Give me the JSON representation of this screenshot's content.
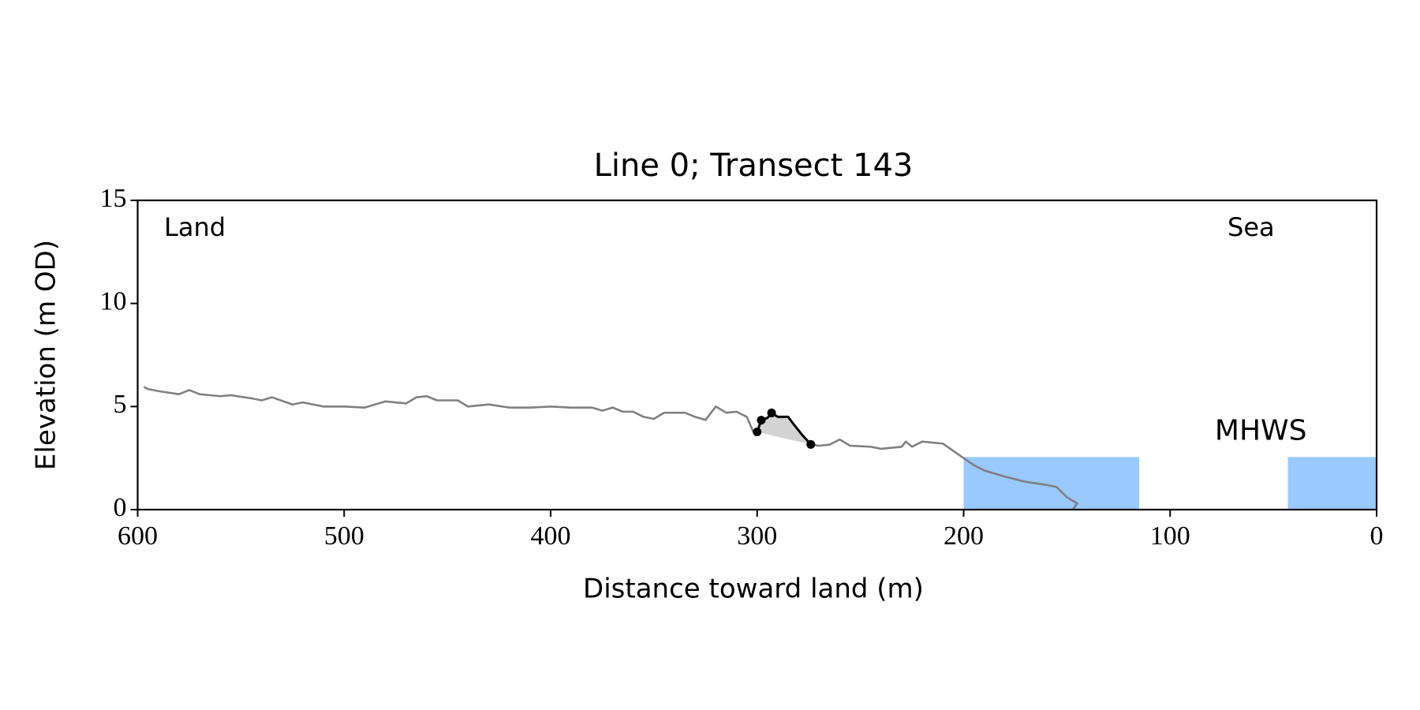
{
  "chart_data": {
    "type": "line",
    "title": "Line 0; Transect 143",
    "xlabel": "Distance toward land (m)",
    "ylabel": "Elevation (m OD)",
    "xlim": [
      600,
      0
    ],
    "ylim": [
      0,
      15
    ],
    "xticks": [
      600,
      500,
      400,
      300,
      200,
      100,
      0
    ],
    "yticks": [
      0,
      5,
      10,
      15
    ],
    "annotations": [
      "Land",
      "Sea"
    ],
    "mhws": {
      "label": "MHWS",
      "level": 2.55,
      "spans": [
        [
          200,
          115
        ],
        [
          43,
          0
        ]
      ],
      "color": "#99c9ff",
      "label_color": "#6699cc"
    },
    "series": [
      {
        "color": "#808080",
        "x": [
          597,
          595,
          590,
          580,
          575,
          570,
          560,
          555,
          545,
          540,
          535,
          525,
          520,
          510,
          500,
          490,
          480,
          470,
          465,
          460,
          455,
          445,
          440,
          430,
          420,
          410,
          400,
          390,
          380,
          375,
          370,
          365,
          360,
          355,
          350,
          345,
          335,
          330,
          325,
          320,
          315,
          310,
          305,
          302,
          300,
          298,
          295,
          293,
          290,
          285,
          282,
          278,
          274,
          270,
          265,
          260,
          255,
          245,
          240,
          230,
          228,
          225,
          220,
          215,
          210,
          205,
          200,
          195,
          190,
          180,
          170,
          160,
          155,
          150,
          145,
          147
        ],
        "values": [
          5.95,
          5.85,
          5.75,
          5.6,
          5.8,
          5.6,
          5.5,
          5.55,
          5.4,
          5.3,
          5.45,
          5.1,
          5.2,
          5.0,
          5.0,
          4.95,
          5.25,
          5.15,
          5.45,
          5.5,
          5.3,
          5.3,
          5.0,
          5.1,
          4.95,
          4.95,
          5.0,
          4.95,
          4.95,
          4.8,
          4.95,
          4.75,
          4.75,
          4.5,
          4.4,
          4.7,
          4.7,
          4.5,
          4.35,
          5.0,
          4.7,
          4.75,
          4.5,
          3.8,
          3.65,
          3.9,
          4.1,
          4.3,
          4.3,
          4.2,
          3.9,
          3.5,
          3.15,
          3.1,
          3.15,
          3.4,
          3.1,
          3.05,
          2.95,
          3.05,
          3.3,
          3.05,
          3.3,
          3.25,
          3.2,
          2.85,
          2.5,
          2.15,
          1.9,
          1.6,
          1.35,
          1.2,
          1.1,
          0.6,
          0.3,
          0.03
        ]
      },
      {
        "color": "#000000",
        "markers": true,
        "fill": "#d3d3d3",
        "x": [
          300,
          298,
          295,
          293,
          290,
          285,
          282,
          278,
          274
        ],
        "values": [
          3.77,
          4.34,
          4.45,
          4.69,
          4.5,
          4.5,
          4.1,
          3.6,
          3.16
        ]
      }
    ]
  }
}
